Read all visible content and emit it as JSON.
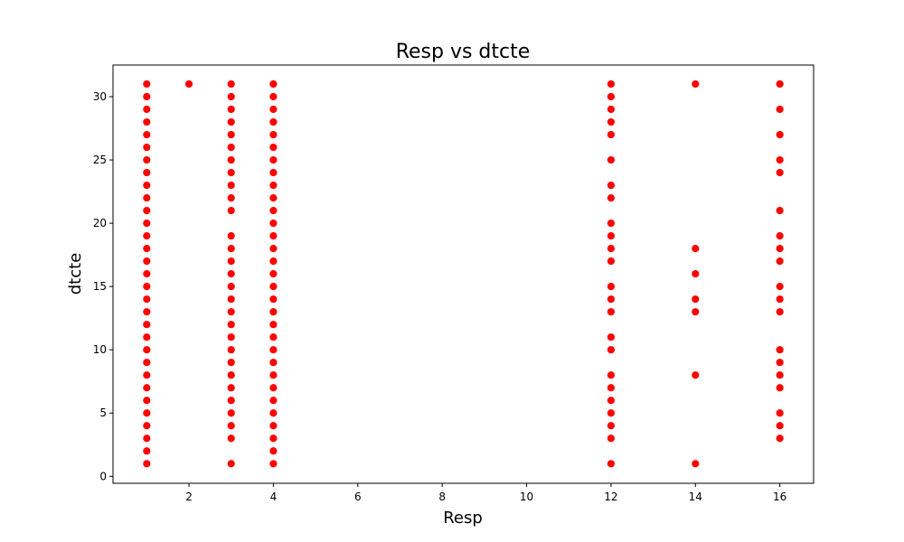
{
  "chart_data": {
    "type": "scatter",
    "title": "Resp vs dtcte",
    "xlabel": "Resp",
    "ylabel": "dtcte",
    "xlim": [
      0.2,
      16.8
    ],
    "ylim": [
      -0.55,
      32.5
    ],
    "xticks": [
      2,
      4,
      6,
      8,
      10,
      12,
      14,
      16
    ],
    "yticks": [
      0,
      5,
      10,
      15,
      20,
      25,
      30
    ],
    "grid": false,
    "legend": "none",
    "marker_color": "#ff0000",
    "points": [
      {
        "x": 1,
        "y": [
          1,
          2,
          3,
          4,
          5,
          6,
          7,
          8,
          9,
          10,
          11,
          12,
          13,
          14,
          15,
          16,
          17,
          18,
          19,
          20,
          21,
          22,
          23,
          24,
          25,
          26,
          27,
          28,
          29,
          30,
          31
        ]
      },
      {
        "x": 2,
        "y": [
          31
        ]
      },
      {
        "x": 3,
        "y": [
          1,
          3,
          4,
          5,
          6,
          7,
          8,
          9,
          10,
          11,
          12,
          13,
          14,
          15,
          16,
          17,
          18,
          19,
          21,
          22,
          23,
          24,
          25,
          26,
          27,
          28,
          29,
          30,
          31
        ]
      },
      {
        "x": 4,
        "y": [
          1,
          2,
          3,
          4,
          5,
          6,
          7,
          8,
          9,
          10,
          11,
          12,
          13,
          14,
          15,
          16,
          17,
          18,
          19,
          20,
          21,
          22,
          23,
          24,
          25,
          26,
          27,
          28,
          29,
          30,
          31
        ]
      },
      {
        "x": 12,
        "y": [
          1,
          3,
          4,
          5,
          6,
          7,
          8,
          10,
          11,
          13,
          14,
          15,
          17,
          18,
          19,
          20,
          22,
          23,
          25,
          27,
          28,
          29,
          30,
          31
        ]
      },
      {
        "x": 14,
        "y": [
          1,
          8,
          13,
          14,
          16,
          18,
          31
        ]
      },
      {
        "x": 16,
        "y": [
          3,
          4,
          5,
          7,
          8,
          9,
          10,
          13,
          14,
          15,
          17,
          18,
          19,
          21,
          24,
          25,
          27,
          29,
          31
        ]
      }
    ]
  }
}
